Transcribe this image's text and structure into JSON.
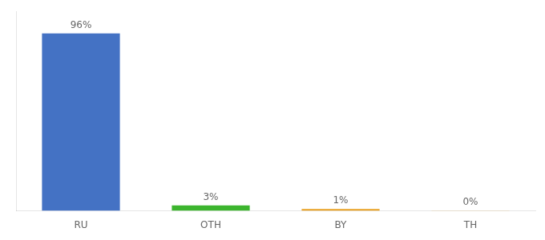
{
  "chart_data": {
    "type": "bar",
    "categories": [
      "RU",
      "OTH",
      "BY",
      "TH"
    ],
    "values": [
      96,
      3,
      1,
      0.2
    ],
    "value_labels": [
      "96%",
      "3%",
      "1%",
      "0%"
    ],
    "colors": [
      "#4472c4",
      "#3cb52e",
      "#e8a020",
      "#e8a020"
    ],
    "ylim": [
      0,
      108
    ],
    "grid": false,
    "data_labels": true,
    "tick_labels": "x"
  }
}
